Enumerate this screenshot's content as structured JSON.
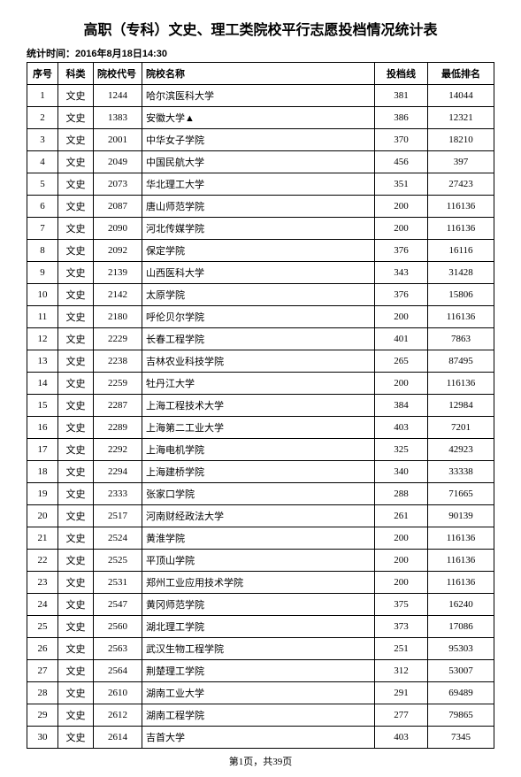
{
  "title": "高职（专科）文史、理工类院校平行志愿投档情况统计表",
  "subtitle_label": "统计时间：",
  "subtitle_time": "2016年8月18日14:30",
  "columns": {
    "seq": "序号",
    "category": "科类",
    "code": "院校代号",
    "name": "院校名称",
    "score": "投档线",
    "rank": "最低排名"
  },
  "rows": [
    {
      "seq": 1,
      "cat": "文史",
      "code": "1244",
      "name": "哈尔滨医科大学",
      "score": 381,
      "rank": 14044
    },
    {
      "seq": 2,
      "cat": "文史",
      "code": "1383",
      "name": "安徽大学▲",
      "score": 386,
      "rank": 12321
    },
    {
      "seq": 3,
      "cat": "文史",
      "code": "2001",
      "name": "中华女子学院",
      "score": 370,
      "rank": 18210
    },
    {
      "seq": 4,
      "cat": "文史",
      "code": "2049",
      "name": "中国民航大学",
      "score": 456,
      "rank": 397
    },
    {
      "seq": 5,
      "cat": "文史",
      "code": "2073",
      "name": "华北理工大学",
      "score": 351,
      "rank": 27423
    },
    {
      "seq": 6,
      "cat": "文史",
      "code": "2087",
      "name": "唐山师范学院",
      "score": 200,
      "rank": 116136
    },
    {
      "seq": 7,
      "cat": "文史",
      "code": "2090",
      "name": "河北传媒学院",
      "score": 200,
      "rank": 116136
    },
    {
      "seq": 8,
      "cat": "文史",
      "code": "2092",
      "name": "保定学院",
      "score": 376,
      "rank": 16116
    },
    {
      "seq": 9,
      "cat": "文史",
      "code": "2139",
      "name": "山西医科大学",
      "score": 343,
      "rank": 31428
    },
    {
      "seq": 10,
      "cat": "文史",
      "code": "2142",
      "name": "太原学院",
      "score": 376,
      "rank": 15806
    },
    {
      "seq": 11,
      "cat": "文史",
      "code": "2180",
      "name": "呼伦贝尔学院",
      "score": 200,
      "rank": 116136
    },
    {
      "seq": 12,
      "cat": "文史",
      "code": "2229",
      "name": "长春工程学院",
      "score": 401,
      "rank": 7863
    },
    {
      "seq": 13,
      "cat": "文史",
      "code": "2238",
      "name": "吉林农业科技学院",
      "score": 265,
      "rank": 87495
    },
    {
      "seq": 14,
      "cat": "文史",
      "code": "2259",
      "name": "牡丹江大学",
      "score": 200,
      "rank": 116136
    },
    {
      "seq": 15,
      "cat": "文史",
      "code": "2287",
      "name": "上海工程技术大学",
      "score": 384,
      "rank": 12984
    },
    {
      "seq": 16,
      "cat": "文史",
      "code": "2289",
      "name": "上海第二工业大学",
      "score": 403,
      "rank": 7201
    },
    {
      "seq": 17,
      "cat": "文史",
      "code": "2292",
      "name": "上海电机学院",
      "score": 325,
      "rank": 42923
    },
    {
      "seq": 18,
      "cat": "文史",
      "code": "2294",
      "name": "上海建桥学院",
      "score": 340,
      "rank": 33338
    },
    {
      "seq": 19,
      "cat": "文史",
      "code": "2333",
      "name": "张家口学院",
      "score": 288,
      "rank": 71665
    },
    {
      "seq": 20,
      "cat": "文史",
      "code": "2517",
      "name": "河南财经政法大学",
      "score": 261,
      "rank": 90139
    },
    {
      "seq": 21,
      "cat": "文史",
      "code": "2524",
      "name": "黄淮学院",
      "score": 200,
      "rank": 116136
    },
    {
      "seq": 22,
      "cat": "文史",
      "code": "2525",
      "name": "平顶山学院",
      "score": 200,
      "rank": 116136
    },
    {
      "seq": 23,
      "cat": "文史",
      "code": "2531",
      "name": "郑州工业应用技术学院",
      "score": 200,
      "rank": 116136
    },
    {
      "seq": 24,
      "cat": "文史",
      "code": "2547",
      "name": "黄冈师范学院",
      "score": 375,
      "rank": 16240
    },
    {
      "seq": 25,
      "cat": "文史",
      "code": "2560",
      "name": "湖北理工学院",
      "score": 373,
      "rank": 17086
    },
    {
      "seq": 26,
      "cat": "文史",
      "code": "2563",
      "name": "武汉生物工程学院",
      "score": 251,
      "rank": 95303
    },
    {
      "seq": 27,
      "cat": "文史",
      "code": "2564",
      "name": "荆楚理工学院",
      "score": 312,
      "rank": 53007
    },
    {
      "seq": 28,
      "cat": "文史",
      "code": "2610",
      "name": "湖南工业大学",
      "score": 291,
      "rank": 69489
    },
    {
      "seq": 29,
      "cat": "文史",
      "code": "2612",
      "name": "湖南工程学院",
      "score": 277,
      "rank": 79865
    },
    {
      "seq": 30,
      "cat": "文史",
      "code": "2614",
      "name": "吉首大学",
      "score": 403,
      "rank": 7345
    }
  ],
  "footer": "第1页，共39页"
}
